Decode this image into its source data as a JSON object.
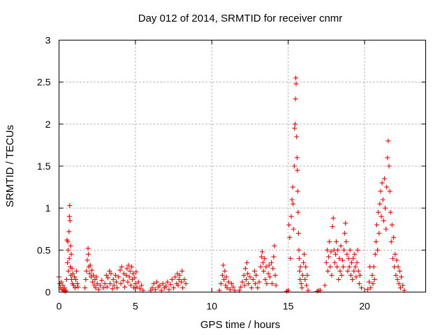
{
  "chart_data": {
    "type": "scatter",
    "title": "Day 012 of 2014, SRMTID for receiver cnmr",
    "xlabel": "GPS time / hours",
    "ylabel": "SRMTID / TECUs",
    "xlim": [
      0,
      24
    ],
    "ylim": [
      0,
      3
    ],
    "xticks": [
      {
        "value": 0,
        "label": "0"
      },
      {
        "value": 5,
        "label": "5"
      },
      {
        "value": 10,
        "label": "10"
      },
      {
        "value": 15,
        "label": "15"
      },
      {
        "value": 20,
        "label": "20"
      }
    ],
    "yticks": [
      {
        "value": 0,
        "label": "0"
      },
      {
        "value": 0.5,
        "label": "0.5"
      },
      {
        "value": 1,
        "label": "1"
      },
      {
        "value": 1.5,
        "label": "1.5"
      },
      {
        "value": 2,
        "label": "2"
      },
      {
        "value": 2.5,
        "label": "2.5"
      },
      {
        "value": 3,
        "label": "3"
      }
    ],
    "grid": true,
    "marker": "+",
    "marker_color": "#ff0000",
    "series": [
      {
        "name": "SRMTID",
        "points": [
          [
            0.0,
            0.18
          ],
          [
            0.05,
            0.1
          ],
          [
            0.1,
            0.05
          ],
          [
            0.15,
            0.12
          ],
          [
            0.2,
            0.03
          ],
          [
            0.25,
            0.08
          ],
          [
            0.3,
            0.02
          ],
          [
            0.35,
            0.05
          ],
          [
            0.4,
            0.01
          ],
          [
            0.45,
            0.02
          ],
          [
            0.5,
            0.15
          ],
          [
            0.52,
            0.62
          ],
          [
            0.55,
            0.35
          ],
          [
            0.58,
            0.6
          ],
          [
            0.6,
            0.5
          ],
          [
            0.62,
            0.25
          ],
          [
            0.65,
            0.72
          ],
          [
            0.67,
            0.4
          ],
          [
            0.68,
            0.9
          ],
          [
            0.7,
            1.03
          ],
          [
            0.72,
            0.85
          ],
          [
            0.74,
            0.3
          ],
          [
            0.76,
            0.55
          ],
          [
            0.78,
            0.2
          ],
          [
            0.8,
            0.45
          ],
          [
            0.82,
            0.15
          ],
          [
            0.85,
            0.28
          ],
          [
            0.88,
            0.1
          ],
          [
            0.9,
            0.22
          ],
          [
            0.95,
            0.08
          ],
          [
            1.0,
            0.18
          ],
          [
            1.05,
            0.05
          ],
          [
            1.1,
            0.15
          ],
          [
            1.15,
            0.25
          ],
          [
            1.2,
            0.1
          ],
          [
            1.25,
            0.06
          ],
          [
            1.7,
            0.05
          ],
          [
            1.75,
            0.15
          ],
          [
            1.8,
            0.25
          ],
          [
            1.85,
            0.38
          ],
          [
            1.9,
            0.52
          ],
          [
            1.92,
            0.45
          ],
          [
            1.95,
            0.3
          ],
          [
            2.0,
            0.22
          ],
          [
            2.05,
            0.32
          ],
          [
            2.1,
            0.18
          ],
          [
            2.15,
            0.26
          ],
          [
            2.2,
            0.12
          ],
          [
            2.25,
            0.2
          ],
          [
            2.3,
            0.08
          ],
          [
            2.35,
            0.15
          ],
          [
            2.4,
            0.05
          ],
          [
            2.45,
            0.18
          ],
          [
            2.5,
            0.1
          ],
          [
            2.6,
            0.03
          ],
          [
            2.7,
            0.08
          ],
          [
            2.8,
            0.14
          ],
          [
            2.9,
            0.05
          ],
          [
            3.0,
            0.1
          ],
          [
            3.1,
            0.2
          ],
          [
            3.15,
            0.06
          ],
          [
            3.2,
            0.17
          ],
          [
            3.3,
            0.25
          ],
          [
            3.35,
            0.1
          ],
          [
            3.4,
            0.22
          ],
          [
            3.5,
            0.04
          ],
          [
            3.55,
            0.15
          ],
          [
            3.6,
            0.08
          ],
          [
            3.7,
            0.2
          ],
          [
            3.75,
            0.12
          ],
          [
            3.8,
            0.05
          ],
          [
            3.9,
            0.18
          ],
          [
            4.0,
            0.26
          ],
          [
            4.05,
            0.1
          ],
          [
            4.1,
            0.3
          ],
          [
            4.2,
            0.14
          ],
          [
            4.25,
            0.22
          ],
          [
            4.3,
            0.06
          ],
          [
            4.4,
            0.2
          ],
          [
            4.45,
            0.28
          ],
          [
            4.5,
            0.12
          ],
          [
            4.55,
            0.32
          ],
          [
            4.6,
            0.18
          ],
          [
            4.65,
            0.25
          ],
          [
            4.7,
            0.08
          ],
          [
            4.75,
            0.3
          ],
          [
            4.8,
            0.15
          ],
          [
            4.85,
            0.22
          ],
          [
            4.9,
            0.05
          ],
          [
            4.95,
            0.17
          ],
          [
            5.0,
            0.1
          ],
          [
            5.05,
            0.24
          ],
          [
            5.1,
            0.06
          ],
          [
            5.2,
            0.12
          ],
          [
            5.3,
            0.04
          ],
          [
            5.4,
            0.08
          ],
          [
            5.5,
            0.02
          ],
          [
            6.0,
            0.02
          ],
          [
            6.1,
            0.05
          ],
          [
            6.2,
            0.1
          ],
          [
            6.3,
            0.03
          ],
          [
            6.4,
            0.12
          ],
          [
            6.5,
            0.06
          ],
          [
            6.6,
            0.08
          ],
          [
            6.7,
            0.02
          ],
          [
            6.8,
            0.1
          ],
          [
            6.9,
            0.05
          ],
          [
            7.0,
            0.07
          ],
          [
            7.1,
            0.12
          ],
          [
            7.2,
            0.03
          ],
          [
            7.3,
            0.09
          ],
          [
            7.4,
            0.15
          ],
          [
            7.5,
            0.05
          ],
          [
            7.6,
            0.18
          ],
          [
            7.7,
            0.1
          ],
          [
            7.75,
            0.22
          ],
          [
            7.8,
            0.08
          ],
          [
            7.85,
            0.15
          ],
          [
            7.9,
            0.2
          ],
          [
            8.0,
            0.12
          ],
          [
            8.05,
            0.25
          ],
          [
            8.1,
            0.05
          ],
          [
            8.2,
            0.15
          ],
          [
            8.3,
            0.1
          ],
          [
            10.5,
            0.02
          ],
          [
            10.6,
            0.1
          ],
          [
            10.7,
            0.2
          ],
          [
            10.75,
            0.32
          ],
          [
            10.8,
            0.15
          ],
          [
            10.85,
            0.25
          ],
          [
            10.9,
            0.08
          ],
          [
            10.95,
            0.18
          ],
          [
            11.0,
            0.05
          ],
          [
            11.1,
            0.12
          ],
          [
            11.2,
            0.03
          ],
          [
            11.3,
            0.1
          ],
          [
            11.4,
            0.06
          ],
          [
            11.5,
            0.02
          ],
          [
            11.8,
            0.02
          ],
          [
            11.9,
            0.06
          ],
          [
            12.0,
            0.12
          ],
          [
            12.1,
            0.2
          ],
          [
            12.15,
            0.08
          ],
          [
            12.2,
            0.28
          ],
          [
            12.25,
            0.15
          ],
          [
            12.3,
            0.35
          ],
          [
            12.35,
            0.22
          ],
          [
            12.4,
            0.1
          ],
          [
            12.5,
            0.18
          ],
          [
            12.6,
            0.05
          ],
          [
            12.7,
            0.15
          ],
          [
            12.8,
            0.25
          ],
          [
            12.85,
            0.1
          ],
          [
            12.9,
            0.2
          ],
          [
            13.0,
            0.05
          ],
          [
            13.1,
            0.12
          ],
          [
            13.2,
            0.3
          ],
          [
            13.25,
            0.42
          ],
          [
            13.3,
            0.48
          ],
          [
            13.35,
            0.35
          ],
          [
            13.4,
            0.25
          ],
          [
            13.45,
            0.4
          ],
          [
            13.5,
            0.15
          ],
          [
            13.55,
            0.3
          ],
          [
            13.6,
            0.1
          ],
          [
            13.7,
            0.22
          ],
          [
            13.75,
            0.32
          ],
          [
            13.8,
            0.18
          ],
          [
            13.9,
            0.35
          ],
          [
            13.95,
            0.1
          ],
          [
            14.0,
            0.28
          ],
          [
            14.05,
            0.42
          ],
          [
            14.1,
            0.55
          ],
          [
            14.15,
            0.2
          ],
          [
            14.2,
            0.08
          ],
          [
            14.9,
            0.01
          ],
          [
            15.0,
            0.02
          ],
          [
            15.05,
            0.8
          ],
          [
            15.1,
            0.65
          ],
          [
            15.15,
            0.4
          ],
          [
            15.2,
            0.9
          ],
          [
            15.25,
            1.1
          ],
          [
            15.3,
            1.25
          ],
          [
            15.32,
            1.05
          ],
          [
            15.35,
            0.75
          ],
          [
            15.4,
            1.5
          ],
          [
            15.42,
            1.95
          ],
          [
            15.45,
            2.0
          ],
          [
            15.48,
            2.3
          ],
          [
            15.5,
            2.55
          ],
          [
            15.52,
            2.48
          ],
          [
            15.55,
            1.85
          ],
          [
            15.58,
            1.6
          ],
          [
            15.6,
            1.45
          ],
          [
            15.62,
            1.2
          ],
          [
            15.65,
            0.95
          ],
          [
            15.68,
            0.7
          ],
          [
            15.7,
            0.5
          ],
          [
            15.72,
            0.4
          ],
          [
            15.75,
            0.25
          ],
          [
            15.78,
            0.15
          ],
          [
            15.8,
            0.3
          ],
          [
            15.85,
            0.1
          ],
          [
            15.9,
            0.05
          ],
          [
            15.95,
            0.2
          ],
          [
            16.0,
            0.35
          ],
          [
            16.05,
            0.45
          ],
          [
            16.1,
            0.15
          ],
          [
            16.15,
            0.3
          ],
          [
            16.2,
            0.08
          ],
          [
            16.25,
            0.2
          ],
          [
            16.3,
            0.02
          ],
          [
            16.9,
            0.01
          ],
          [
            17.0,
            0.02
          ],
          [
            17.1,
            0.02
          ],
          [
            17.4,
            0.08
          ],
          [
            17.5,
            0.35
          ],
          [
            17.55,
            0.5
          ],
          [
            17.6,
            0.25
          ],
          [
            17.65,
            0.42
          ],
          [
            17.7,
            0.6
          ],
          [
            17.75,
            0.3
          ],
          [
            17.8,
            0.48
          ],
          [
            17.85,
            0.2
          ],
          [
            17.9,
            0.78
          ],
          [
            17.95,
            0.88
          ],
          [
            18.0,
            0.5
          ],
          [
            18.05,
            0.35
          ],
          [
            18.1,
            0.45
          ],
          [
            18.15,
            0.6
          ],
          [
            18.2,
            0.3
          ],
          [
            18.25,
            0.5
          ],
          [
            18.3,
            0.15
          ],
          [
            18.35,
            0.4
          ],
          [
            18.4,
            0.25
          ],
          [
            18.45,
            0.55
          ],
          [
            18.5,
            0.2
          ],
          [
            18.55,
            0.38
          ],
          [
            18.6,
            0.3
          ],
          [
            18.65,
            0.5
          ],
          [
            18.7,
            0.7
          ],
          [
            18.75,
            0.82
          ],
          [
            18.8,
            0.6
          ],
          [
            18.85,
            0.45
          ],
          [
            18.9,
            0.25
          ],
          [
            18.95,
            0.4
          ],
          [
            19.0,
            0.3
          ],
          [
            19.05,
            0.5
          ],
          [
            19.1,
            0.2
          ],
          [
            19.15,
            0.35
          ],
          [
            19.2,
            0.15
          ],
          [
            19.25,
            0.4
          ],
          [
            19.3,
            0.25
          ],
          [
            19.35,
            0.45
          ],
          [
            19.4,
            0.3
          ],
          [
            19.45,
            0.18
          ],
          [
            19.5,
            0.35
          ],
          [
            19.55,
            0.5
          ],
          [
            19.6,
            0.25
          ],
          [
            19.65,
            0.1
          ],
          [
            19.7,
            0.2
          ],
          [
            19.8,
            0.05
          ],
          [
            20.2,
            0.03
          ],
          [
            20.3,
            0.12
          ],
          [
            20.35,
            0.3
          ],
          [
            20.4,
            0.05
          ],
          [
            20.5,
            0.2
          ],
          [
            20.55,
            0.1
          ],
          [
            20.6,
            0.3
          ],
          [
            20.65,
            0.15
          ],
          [
            20.7,
            0.45
          ],
          [
            20.75,
            0.6
          ],
          [
            20.8,
            0.8
          ],
          [
            20.85,
            0.5
          ],
          [
            20.9,
            0.95
          ],
          [
            20.95,
            0.7
          ],
          [
            21.0,
            1.05
          ],
          [
            21.05,
            1.2
          ],
          [
            21.1,
            0.9
          ],
          [
            21.15,
            1.3
          ],
          [
            21.2,
            1.1
          ],
          [
            21.25,
            0.85
          ],
          [
            21.3,
            1.35
          ],
          [
            21.35,
            1.0
          ],
          [
            21.4,
            0.75
          ],
          [
            21.45,
            1.25
          ],
          [
            21.5,
            1.6
          ],
          [
            21.55,
            1.8
          ],
          [
            21.6,
            1.5
          ],
          [
            21.65,
            1.2
          ],
          [
            21.7,
            0.95
          ],
          [
            21.75,
            0.6
          ],
          [
            21.8,
            0.8
          ],
          [
            21.85,
            0.4
          ],
          [
            21.9,
            0.65
          ],
          [
            21.95,
            0.3
          ],
          [
            22.0,
            0.45
          ],
          [
            22.05,
            0.2
          ],
          [
            22.1,
            0.38
          ],
          [
            22.15,
            0.15
          ],
          [
            22.2,
            0.3
          ],
          [
            22.25,
            0.1
          ],
          [
            22.3,
            0.25
          ],
          [
            22.35,
            0.05
          ],
          [
            22.4,
            0.18
          ],
          [
            22.5,
            0.08
          ],
          [
            22.6,
            0.02
          ]
        ]
      }
    ]
  }
}
